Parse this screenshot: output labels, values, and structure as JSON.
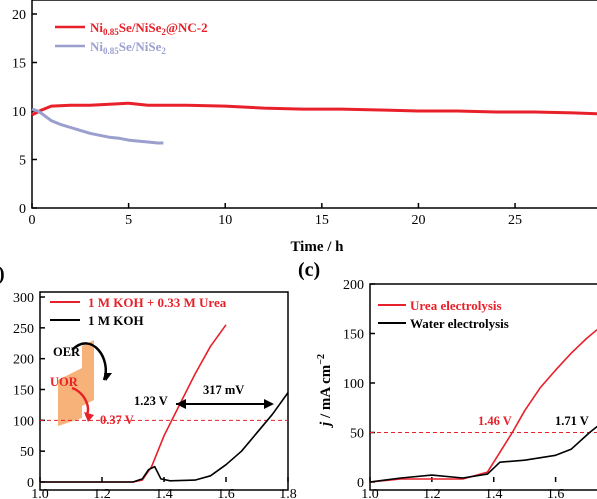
{
  "chart_data": [
    {
      "type": "line",
      "xlabel": "Time / h",
      "ylabel": "",
      "xlim": [
        0,
        29.5
      ],
      "ylim": [
        0,
        20
      ],
      "x_ticks": [
        "0",
        "5",
        "10",
        "15",
        "20",
        "25"
      ],
      "y_ticks": [
        "0",
        "5",
        "10",
        "15",
        "20"
      ],
      "legend": "top-left",
      "series": [
        {
          "name_main": "Ni",
          "name_sub": "0.85",
          "name_rest": "Se/NiSe",
          "name_sub2": "2",
          "name_tail": "@NC-2",
          "color": "#e8202a",
          "x": [
            0,
            0.5,
            1,
            2,
            3,
            4,
            5,
            6,
            7,
            8,
            10,
            12,
            14,
            16,
            18,
            20,
            22,
            24,
            26,
            28,
            29.5
          ],
          "y": [
            9.6,
            10.1,
            10.5,
            10.6,
            10.6,
            10.7,
            10.8,
            10.6,
            10.6,
            10.6,
            10.5,
            10.3,
            10.2,
            10.2,
            10.1,
            10.0,
            10.0,
            9.9,
            9.9,
            9.8,
            9.7
          ]
        },
        {
          "name_main": "Ni",
          "name_sub": "0.85",
          "name_rest": "Se/NiSe",
          "name_sub2": "2",
          "name_tail": "",
          "color": "#9b9fce",
          "x": [
            0,
            0.3,
            0.6,
            1,
            1.5,
            2,
            2.5,
            3,
            3.5,
            4,
            4.5,
            5,
            5.5,
            6,
            6.5,
            6.8
          ],
          "y": [
            10.2,
            10.0,
            9.6,
            9.0,
            8.6,
            8.3,
            8.0,
            7.7,
            7.5,
            7.3,
            7.2,
            7.0,
            6.9,
            6.8,
            6.7,
            6.7
          ]
        }
      ]
    },
    {
      "type": "line",
      "panel_label": ")",
      "xlabel": "",
      "ylabel": "",
      "xlim": [
        1.0,
        1.8
      ],
      "ylim": [
        0,
        300
      ],
      "x_ticks": [
        "1.0",
        "1.2",
        "1.4",
        "1.6",
        "1.8"
      ],
      "y_ticks": [
        "0",
        "50",
        "100",
        "150",
        "200",
        "250",
        "300"
      ],
      "legend": "top-left",
      "series": [
        {
          "name": "1 M KOH + 0.33 M Urea",
          "color": "#e8202a",
          "x": [
            1.0,
            1.3,
            1.33,
            1.36,
            1.4,
            1.45,
            1.5,
            1.55,
            1.6
          ],
          "y": [
            0,
            0,
            3,
            25,
            75,
            125,
            175,
            220,
            255
          ]
        },
        {
          "name": "1 M KOH",
          "color": "#000000",
          "x": [
            1.0,
            1.3,
            1.33,
            1.35,
            1.37,
            1.39,
            1.42,
            1.5,
            1.55,
            1.6,
            1.65,
            1.7,
            1.75,
            1.8
          ],
          "y": [
            0,
            0,
            5,
            20,
            25,
            5,
            2,
            3,
            10,
            28,
            50,
            80,
            110,
            145
          ]
        }
      ],
      "annotations": {
        "oer": "OER",
        "uor": "UOR",
        "v123": "1.23 V",
        "v037": "0.37 V",
        "mv317": "317 mV"
      },
      "reference_line_y": 100
    },
    {
      "type": "line",
      "panel_label": "(c)",
      "xlabel": "",
      "ylabel_main": "j",
      "ylabel_rest": " / mA cm",
      "ylabel_sup": "−2",
      "xlim": [
        1.0,
        1.75
      ],
      "ylim": [
        0,
        200
      ],
      "x_ticks": [
        "1.0",
        "1.2",
        "1.4",
        "1.6"
      ],
      "y_ticks": [
        "0",
        "50",
        "100",
        "150",
        "200"
      ],
      "legend": "top-left",
      "series": [
        {
          "name": "Urea electrolysis",
          "color": "#e8202a",
          "x": [
            1.0,
            1.1,
            1.2,
            1.3,
            1.38,
            1.42,
            1.46,
            1.5,
            1.55,
            1.6,
            1.65,
            1.7,
            1.75
          ],
          "y": [
            0,
            3,
            3,
            3,
            10,
            30,
            50,
            72,
            95,
            113,
            130,
            145,
            158
          ]
        },
        {
          "name": "Water electrolysis",
          "color": "#000000",
          "x": [
            1.0,
            1.1,
            1.2,
            1.3,
            1.38,
            1.42,
            1.5,
            1.6,
            1.65,
            1.71,
            1.75
          ],
          "y": [
            0,
            4,
            7,
            4,
            8,
            20,
            22,
            27,
            33,
            50,
            60
          ]
        }
      ],
      "annotations": {
        "v146": "1.46 V",
        "v171": "1.71 V"
      },
      "reference_line_y": 50
    }
  ]
}
